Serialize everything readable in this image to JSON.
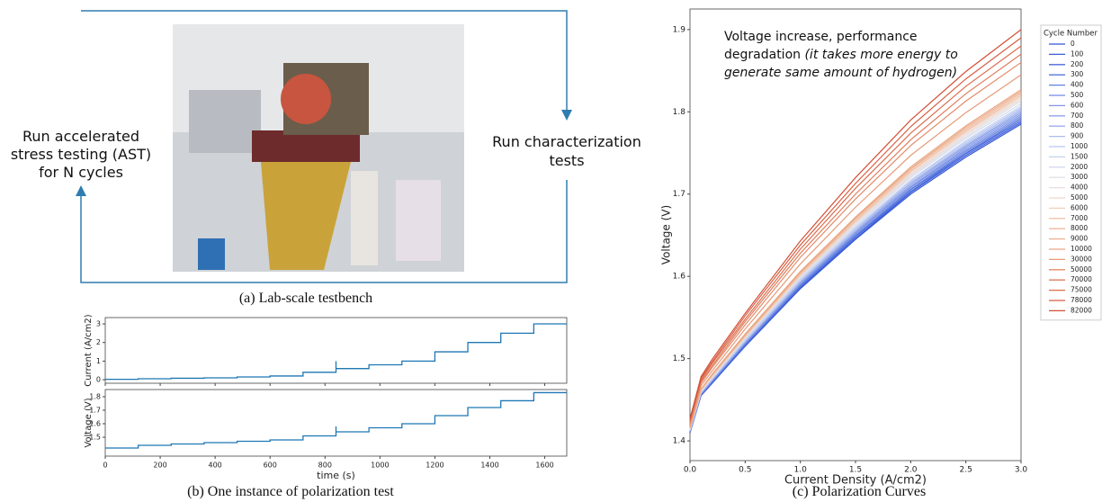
{
  "diagram": {
    "left_text": "Run accelerated stress testing (AST) for N cycles",
    "right_text": "Run characterization tests"
  },
  "captions": [
    "(a) Lab-scale testbench",
    "(b) One instance of polarization test",
    "(c) Polarization Curves"
  ],
  "chart_data": [
    {
      "type": "step",
      "ylabel": "Current (A/cm2)",
      "color": "#1f77b4",
      "x": [
        0,
        120,
        120,
        240,
        240,
        360,
        360,
        480,
        480,
        600,
        600,
        720,
        720,
        840,
        840,
        840,
        960,
        960,
        1080,
        1080,
        1200,
        1200,
        1320,
        1320,
        1440,
        1440,
        1560,
        1560,
        1680
      ],
      "values": [
        0.02,
        0.02,
        0.05,
        0.05,
        0.08,
        0.08,
        0.1,
        0.1,
        0.15,
        0.15,
        0.2,
        0.2,
        0.4,
        0.4,
        1.0,
        0.6,
        0.6,
        0.8,
        0.8,
        1.0,
        1.0,
        1.5,
        1.5,
        2.0,
        2.0,
        2.5,
        2.5,
        3.0,
        3.0
      ],
      "xlim": [
        0,
        1680
      ],
      "ylim": [
        -0.19,
        3.34
      ],
      "yticks": [
        0,
        1,
        2,
        3
      ]
    },
    {
      "type": "step",
      "ylabel": "Voltage (V)",
      "xlabel": "time (s)",
      "color": "#1f77b4",
      "x": [
        0,
        120,
        120,
        240,
        240,
        360,
        360,
        480,
        480,
        600,
        600,
        720,
        720,
        840,
        840,
        840,
        960,
        960,
        1080,
        1080,
        1200,
        1200,
        1320,
        1320,
        1440,
        1440,
        1560,
        1560,
        1680
      ],
      "values": [
        1.42,
        1.42,
        1.44,
        1.44,
        1.45,
        1.45,
        1.46,
        1.46,
        1.47,
        1.47,
        1.48,
        1.48,
        1.51,
        1.51,
        1.58,
        1.54,
        1.54,
        1.57,
        1.57,
        1.6,
        1.6,
        1.66,
        1.66,
        1.72,
        1.72,
        1.77,
        1.77,
        1.83,
        1.83
      ],
      "xlim": [
        0,
        1680
      ],
      "ylim": [
        1.36,
        1.853
      ],
      "xticks": [
        0,
        200,
        400,
        600,
        800,
        1000,
        1200,
        1400,
        1600
      ],
      "yticks": [
        1.5,
        1.6,
        1.7,
        1.8
      ]
    },
    {
      "type": "line",
      "xlabel": "Current Density (A/cm2)",
      "ylabel": "Voltage (V)",
      "annotation": "Voltage increase, performance degradation",
      "annotation_italic": "(it takes more energy to generate same amount of hydrogen)",
      "legend_title": "Cycle Number",
      "legend": "outside-right",
      "xlim": [
        0,
        3
      ],
      "ylim": [
        1.376,
        1.925
      ],
      "xticks": [
        {
          "value": 0,
          "label": "0.0"
        },
        0.5,
        {
          "value": 1,
          "label": "1.0"
        },
        1.5,
        {
          "value": 2,
          "label": "2.0"
        },
        2.5,
        {
          "value": 3,
          "label": "3.0"
        }
      ],
      "yticks": [
        1.4,
        1.5,
        1.6,
        1.7,
        1.8,
        1.9
      ],
      "x": [
        0,
        0.1,
        0.2,
        0.5,
        1.0,
        1.5,
        2.0,
        2.5,
        3.0
      ],
      "series": [
        {
          "name": "0",
          "color": "#3355d6",
          "values": [
            1.41,
            1.455,
            1.47,
            1.515,
            1.585,
            1.645,
            1.7,
            1.745,
            1.785
          ]
        },
        {
          "name": "100",
          "color": "#3d5ed9",
          "values": [
            1.41,
            1.455,
            1.47,
            1.516,
            1.586,
            1.646,
            1.702,
            1.747,
            1.787
          ]
        },
        {
          "name": "200",
          "color": "#4a69dc",
          "values": [
            1.411,
            1.456,
            1.471,
            1.516,
            1.587,
            1.648,
            1.703,
            1.749,
            1.789
          ]
        },
        {
          "name": "300",
          "color": "#5674de",
          "values": [
            1.411,
            1.456,
            1.472,
            1.517,
            1.588,
            1.649,
            1.705,
            1.75,
            1.791
          ]
        },
        {
          "name": "400",
          "color": "#6380e0",
          "values": [
            1.411,
            1.457,
            1.472,
            1.518,
            1.589,
            1.65,
            1.706,
            1.752,
            1.793
          ]
        },
        {
          "name": "500",
          "color": "#718be3",
          "values": [
            1.412,
            1.457,
            1.473,
            1.519,
            1.59,
            1.652,
            1.708,
            1.754,
            1.795
          ]
        },
        {
          "name": "600",
          "color": "#7f97e6",
          "values": [
            1.412,
            1.457,
            1.473,
            1.519,
            1.591,
            1.653,
            1.709,
            1.756,
            1.797
          ]
        },
        {
          "name": "700",
          "color": "#8ea3e9",
          "values": [
            1.412,
            1.458,
            1.474,
            1.52,
            1.592,
            1.654,
            1.711,
            1.758,
            1.799
          ]
        },
        {
          "name": "800",
          "color": "#9cafec",
          "values": [
            1.412,
            1.458,
            1.474,
            1.521,
            1.593,
            1.655,
            1.713,
            1.759,
            1.801
          ]
        },
        {
          "name": "900",
          "color": "#aabbee",
          "values": [
            1.413,
            1.459,
            1.475,
            1.521,
            1.594,
            1.657,
            1.714,
            1.761,
            1.803
          ]
        },
        {
          "name": "1000",
          "color": "#b8c7f0",
          "values": [
            1.413,
            1.459,
            1.475,
            1.522,
            1.595,
            1.658,
            1.716,
            1.763,
            1.805
          ]
        },
        {
          "name": "1500",
          "color": "#c6d1f0",
          "values": [
            1.413,
            1.459,
            1.476,
            1.523,
            1.596,
            1.659,
            1.717,
            1.765,
            1.807
          ]
        },
        {
          "name": "2000",
          "color": "#d4dbee",
          "values": [
            1.414,
            1.46,
            1.476,
            1.524,
            1.598,
            1.661,
            1.72,
            1.768,
            1.81
          ]
        },
        {
          "name": "3000",
          "color": "#e0e0e8",
          "values": [
            1.414,
            1.461,
            1.477,
            1.525,
            1.599,
            1.663,
            1.722,
            1.77,
            1.813
          ]
        },
        {
          "name": "4000",
          "color": "#e9ddda",
          "values": [
            1.415,
            1.461,
            1.478,
            1.526,
            1.6,
            1.665,
            1.723,
            1.772,
            1.815
          ]
        },
        {
          "name": "5000",
          "color": "#efd6ca",
          "values": [
            1.415,
            1.461,
            1.478,
            1.526,
            1.601,
            1.666,
            1.725,
            1.774,
            1.817
          ]
        },
        {
          "name": "6000",
          "color": "#f1cdb9",
          "values": [
            1.415,
            1.462,
            1.479,
            1.527,
            1.602,
            1.667,
            1.727,
            1.776,
            1.819
          ]
        },
        {
          "name": "7000",
          "color": "#f0c3aa",
          "values": [
            1.415,
            1.462,
            1.479,
            1.528,
            1.603,
            1.668,
            1.728,
            1.777,
            1.821
          ]
        },
        {
          "name": "8000",
          "color": "#eeb99c",
          "values": [
            1.416,
            1.463,
            1.48,
            1.528,
            1.604,
            1.67,
            1.73,
            1.779,
            1.823
          ]
        },
        {
          "name": "9000",
          "color": "#ecb08f",
          "values": [
            1.416,
            1.463,
            1.48,
            1.529,
            1.605,
            1.671,
            1.731,
            1.781,
            1.825
          ]
        },
        {
          "name": "10000",
          "color": "#eaa683",
          "values": [
            1.416,
            1.463,
            1.481,
            1.53,
            1.606,
            1.672,
            1.733,
            1.783,
            1.827
          ]
        },
        {
          "name": "30000",
          "color": "#e69a78",
          "values": [
            1.419,
            1.467,
            1.485,
            1.536,
            1.615,
            1.684,
            1.747,
            1.799,
            1.845
          ]
        },
        {
          "name": "50000",
          "color": "#e38b69",
          "values": [
            1.421,
            1.47,
            1.489,
            1.541,
            1.623,
            1.694,
            1.759,
            1.813,
            1.86
          ]
        },
        {
          "name": "70000",
          "color": "#df7c5b",
          "values": [
            1.423,
            1.472,
            1.491,
            1.545,
            1.628,
            1.7,
            1.766,
            1.822,
            1.87
          ]
        },
        {
          "name": "75000",
          "color": "#db6d4e",
          "values": [
            1.424,
            1.474,
            1.494,
            1.548,
            1.633,
            1.707,
            1.774,
            1.831,
            1.88
          ]
        },
        {
          "name": "78000",
          "color": "#d75e42",
          "values": [
            1.426,
            1.476,
            1.496,
            1.552,
            1.638,
            1.713,
            1.782,
            1.84,
            1.89
          ]
        },
        {
          "name": "82000",
          "color": "#d24f36",
          "values": [
            1.427,
            1.478,
            1.499,
            1.555,
            1.643,
            1.72,
            1.79,
            1.849,
            1.9
          ]
        }
      ]
    }
  ]
}
